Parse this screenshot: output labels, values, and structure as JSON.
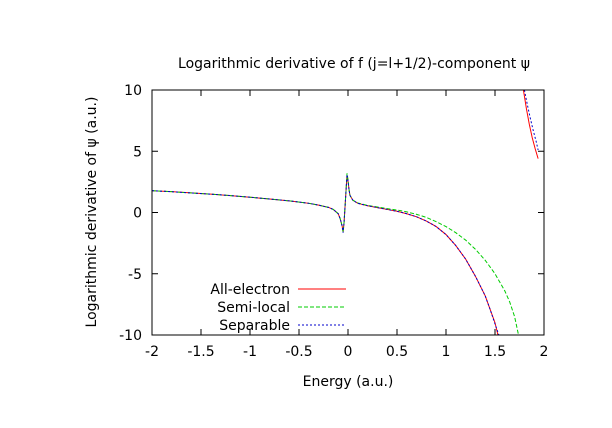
{
  "chart_data": {
    "type": "line",
    "title": "Logarithmic derivative of f (j=l+1/2)-component ψ",
    "xlabel": "Energy (a.u.)",
    "ylabel": "Logarithmic derivative of ψ (a.u.)",
    "xlim": [
      -2,
      2
    ],
    "ylim": [
      -10,
      10
    ],
    "xticks": [
      -2,
      -1.5,
      -1,
      -0.5,
      0,
      0.5,
      1,
      1.5,
      2
    ],
    "yticks": [
      -10,
      -5,
      0,
      5,
      10
    ],
    "grid": false,
    "legend_position": "bottom-left",
    "series": [
      {
        "name": "All-electron",
        "color": "#ff0000",
        "dash": "solid",
        "segments": [
          [
            [
              -2,
              1.78
            ],
            [
              -1.8,
              1.7
            ],
            [
              -1.6,
              1.6
            ],
            [
              -1.4,
              1.5
            ],
            [
              -1.2,
              1.38
            ],
            [
              -1.0,
              1.25
            ],
            [
              -0.8,
              1.1
            ],
            [
              -0.6,
              0.95
            ],
            [
              -0.4,
              0.75
            ],
            [
              -0.3,
              0.6
            ],
            [
              -0.2,
              0.42
            ],
            [
              -0.15,
              0.25
            ],
            [
              -0.1,
              -0.1
            ],
            [
              -0.08,
              -0.5
            ],
            [
              -0.06,
              -1.1
            ],
            [
              -0.05,
              -1.6
            ],
            [
              -0.04,
              -0.8
            ],
            [
              -0.03,
              0.5
            ],
            [
              -0.02,
              1.8
            ],
            [
              -0.01,
              3.0
            ],
            [
              0.0,
              2.6
            ],
            [
              0.01,
              1.9
            ],
            [
              0.02,
              1.4
            ],
            [
              0.05,
              1.0
            ],
            [
              0.1,
              0.75
            ],
            [
              0.2,
              0.55
            ],
            [
              0.3,
              0.4
            ],
            [
              0.4,
              0.25
            ],
            [
              0.5,
              0.1
            ],
            [
              0.6,
              -0.1
            ],
            [
              0.7,
              -0.35
            ],
            [
              0.8,
              -0.7
            ],
            [
              0.9,
              -1.15
            ],
            [
              1.0,
              -1.8
            ],
            [
              1.1,
              -2.7
            ],
            [
              1.2,
              -3.8
            ],
            [
              1.3,
              -5.2
            ],
            [
              1.4,
              -6.8
            ],
            [
              1.45,
              -7.9
            ],
            [
              1.5,
              -9.0
            ],
            [
              1.53,
              -10
            ]
          ],
          [
            [
              1.79,
              10
            ],
            [
              1.82,
              8.5
            ],
            [
              1.85,
              7.2
            ],
            [
              1.88,
              6.1
            ],
            [
              1.91,
              5.2
            ],
            [
              1.94,
              4.4
            ]
          ]
        ]
      },
      {
        "name": "Semi-local",
        "color": "#00cc00",
        "dash": "dashed",
        "segments": [
          [
            [
              -2,
              1.78
            ],
            [
              -1.8,
              1.7
            ],
            [
              -1.6,
              1.6
            ],
            [
              -1.4,
              1.5
            ],
            [
              -1.2,
              1.38
            ],
            [
              -1.0,
              1.25
            ],
            [
              -0.8,
              1.1
            ],
            [
              -0.6,
              0.95
            ],
            [
              -0.4,
              0.75
            ],
            [
              -0.3,
              0.6
            ],
            [
              -0.2,
              0.42
            ],
            [
              -0.15,
              0.25
            ],
            [
              -0.1,
              -0.1
            ],
            [
              -0.08,
              -0.5
            ],
            [
              -0.06,
              -1.1
            ],
            [
              -0.05,
              -1.6
            ],
            [
              -0.04,
              -0.8
            ],
            [
              -0.03,
              0.5
            ],
            [
              -0.02,
              1.8
            ],
            [
              -0.01,
              3.2
            ],
            [
              0.0,
              2.7
            ],
            [
              0.01,
              1.9
            ],
            [
              0.02,
              1.4
            ],
            [
              0.05,
              1.0
            ],
            [
              0.1,
              0.78
            ],
            [
              0.2,
              0.58
            ],
            [
              0.3,
              0.45
            ],
            [
              0.4,
              0.32
            ],
            [
              0.5,
              0.2
            ],
            [
              0.6,
              0.05
            ],
            [
              0.7,
              -0.15
            ],
            [
              0.8,
              -0.4
            ],
            [
              0.9,
              -0.75
            ],
            [
              1.0,
              -1.15
            ],
            [
              1.1,
              -1.65
            ],
            [
              1.2,
              -2.25
            ],
            [
              1.3,
              -3.0
            ],
            [
              1.4,
              -3.9
            ],
            [
              1.5,
              -5.0
            ],
            [
              1.6,
              -6.4
            ],
            [
              1.65,
              -7.3
            ],
            [
              1.7,
              -8.5
            ],
            [
              1.74,
              -10
            ]
          ]
        ]
      },
      {
        "name": "Separable",
        "color": "#0000cc",
        "dash": "dotted",
        "segments": [
          [
            [
              -2,
              1.78
            ],
            [
              -1.8,
              1.7
            ],
            [
              -1.6,
              1.6
            ],
            [
              -1.4,
              1.5
            ],
            [
              -1.2,
              1.38
            ],
            [
              -1.0,
              1.25
            ],
            [
              -0.8,
              1.1
            ],
            [
              -0.6,
              0.95
            ],
            [
              -0.4,
              0.75
            ],
            [
              -0.3,
              0.6
            ],
            [
              -0.2,
              0.42
            ],
            [
              -0.15,
              0.25
            ],
            [
              -0.1,
              -0.1
            ],
            [
              -0.08,
              -0.5
            ],
            [
              -0.06,
              -1.1
            ],
            [
              -0.05,
              -1.65
            ],
            [
              -0.04,
              -0.8
            ],
            [
              -0.03,
              0.5
            ],
            [
              -0.02,
              1.8
            ],
            [
              -0.01,
              3.1
            ],
            [
              0.0,
              2.6
            ],
            [
              0.01,
              1.9
            ],
            [
              0.02,
              1.4
            ],
            [
              0.05,
              1.0
            ],
            [
              0.1,
              0.75
            ],
            [
              0.2,
              0.55
            ],
            [
              0.3,
              0.4
            ],
            [
              0.4,
              0.25
            ],
            [
              0.5,
              0.1
            ],
            [
              0.6,
              -0.1
            ],
            [
              0.7,
              -0.35
            ],
            [
              0.8,
              -0.7
            ],
            [
              0.9,
              -1.15
            ],
            [
              1.0,
              -1.8
            ],
            [
              1.1,
              -2.7
            ],
            [
              1.2,
              -3.8
            ],
            [
              1.3,
              -5.2
            ],
            [
              1.4,
              -6.8
            ],
            [
              1.45,
              -7.9
            ],
            [
              1.5,
              -9.1
            ],
            [
              1.54,
              -10
            ]
          ],
          [
            [
              1.8,
              10
            ],
            [
              1.83,
              8.8
            ],
            [
              1.86,
              7.7
            ],
            [
              1.89,
              6.7
            ],
            [
              1.92,
              5.8
            ],
            [
              1.94,
              5.1
            ]
          ]
        ]
      }
    ]
  }
}
